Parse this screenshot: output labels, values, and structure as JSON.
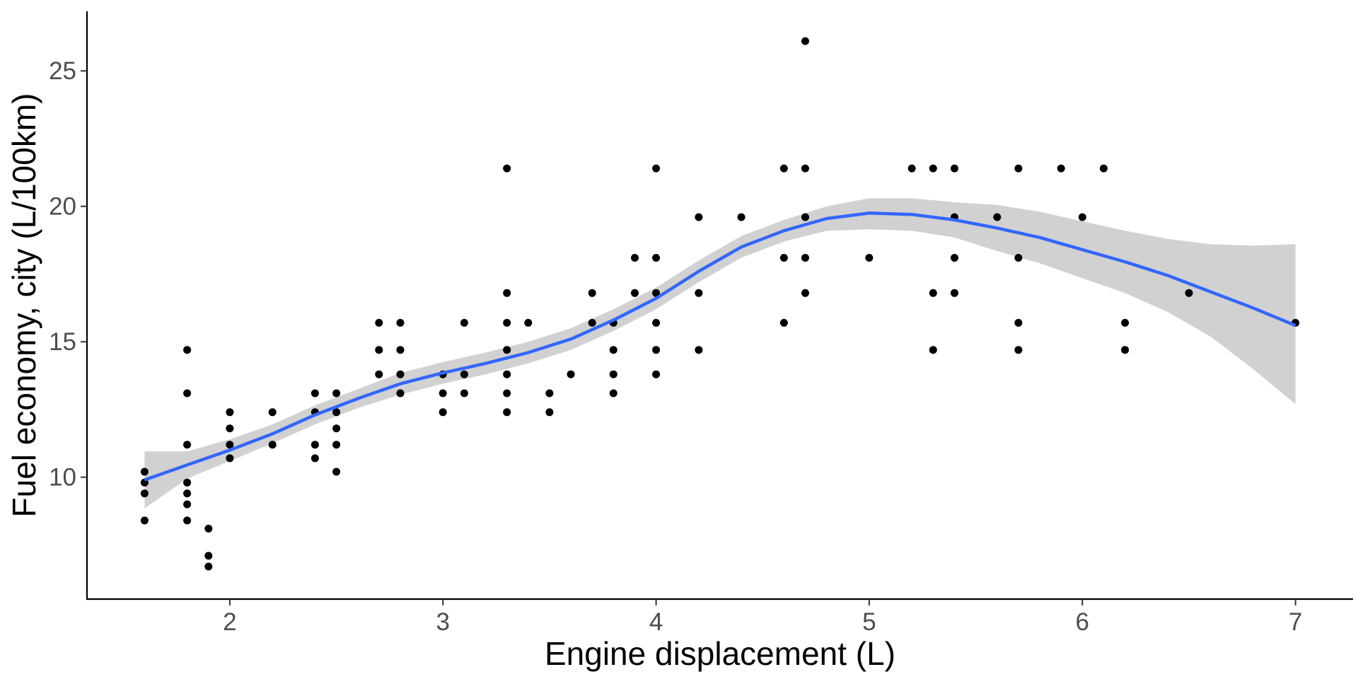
{
  "chart_data": {
    "type": "scatter",
    "title": "",
    "xlabel": "Engine displacement (L)",
    "ylabel": "Fuel economy, city (L/100km)",
    "xlim": [
      1.33,
      7.27
    ],
    "ylim": [
      5.5,
      27.2
    ],
    "x_ticks": [
      2,
      3,
      4,
      5,
      6,
      7
    ],
    "y_ticks": [
      10,
      15,
      20,
      25
    ],
    "grid": false,
    "legend": "none",
    "colors": {
      "points": "#000000",
      "smooth_line": "#3366ff",
      "confidence_band": "#cccccc",
      "axis": "#000000",
      "tick_label": "#4d4d4d"
    },
    "points": [
      {
        "x": 1.6,
        "y": 8.4
      },
      {
        "x": 1.6,
        "y": 9.4
      },
      {
        "x": 1.6,
        "y": 9.8
      },
      {
        "x": 1.6,
        "y": 10.2
      },
      {
        "x": 1.8,
        "y": 8.4
      },
      {
        "x": 1.8,
        "y": 9.0
      },
      {
        "x": 1.8,
        "y": 9.4
      },
      {
        "x": 1.8,
        "y": 9.8
      },
      {
        "x": 1.8,
        "y": 11.2
      },
      {
        "x": 1.8,
        "y": 13.1
      },
      {
        "x": 1.8,
        "y": 14.7
      },
      {
        "x": 1.9,
        "y": 6.7
      },
      {
        "x": 1.9,
        "y": 7.1
      },
      {
        "x": 1.9,
        "y": 8.1
      },
      {
        "x": 2.0,
        "y": 10.7
      },
      {
        "x": 2.0,
        "y": 11.2
      },
      {
        "x": 2.0,
        "y": 11.8
      },
      {
        "x": 2.0,
        "y": 12.4
      },
      {
        "x": 2.2,
        "y": 11.2
      },
      {
        "x": 2.2,
        "y": 12.4
      },
      {
        "x": 2.4,
        "y": 10.7
      },
      {
        "x": 2.4,
        "y": 11.2
      },
      {
        "x": 2.4,
        "y": 12.4
      },
      {
        "x": 2.4,
        "y": 13.1
      },
      {
        "x": 2.5,
        "y": 10.2
      },
      {
        "x": 2.5,
        "y": 11.2
      },
      {
        "x": 2.5,
        "y": 11.8
      },
      {
        "x": 2.5,
        "y": 12.4
      },
      {
        "x": 2.5,
        "y": 13.1
      },
      {
        "x": 2.7,
        "y": 13.8
      },
      {
        "x": 2.7,
        "y": 14.7
      },
      {
        "x": 2.7,
        "y": 15.7
      },
      {
        "x": 2.8,
        "y": 13.1
      },
      {
        "x": 2.8,
        "y": 13.8
      },
      {
        "x": 2.8,
        "y": 14.7
      },
      {
        "x": 2.8,
        "y": 15.7
      },
      {
        "x": 3.0,
        "y": 12.4
      },
      {
        "x": 3.0,
        "y": 13.1
      },
      {
        "x": 3.0,
        "y": 13.8
      },
      {
        "x": 3.1,
        "y": 13.1
      },
      {
        "x": 3.1,
        "y": 13.8
      },
      {
        "x": 3.1,
        "y": 15.7
      },
      {
        "x": 3.3,
        "y": 12.4
      },
      {
        "x": 3.3,
        "y": 13.1
      },
      {
        "x": 3.3,
        "y": 13.8
      },
      {
        "x": 3.3,
        "y": 14.7
      },
      {
        "x": 3.3,
        "y": 15.7
      },
      {
        "x": 3.3,
        "y": 16.8
      },
      {
        "x": 3.3,
        "y": 21.4
      },
      {
        "x": 3.4,
        "y": 15.7
      },
      {
        "x": 3.5,
        "y": 12.4
      },
      {
        "x": 3.5,
        "y": 13.1
      },
      {
        "x": 3.6,
        "y": 13.8
      },
      {
        "x": 3.7,
        "y": 15.7
      },
      {
        "x": 3.7,
        "y": 16.8
      },
      {
        "x": 3.8,
        "y": 13.1
      },
      {
        "x": 3.8,
        "y": 13.8
      },
      {
        "x": 3.8,
        "y": 14.7
      },
      {
        "x": 3.8,
        "y": 15.7
      },
      {
        "x": 3.9,
        "y": 16.8
      },
      {
        "x": 3.9,
        "y": 18.1
      },
      {
        "x": 4.0,
        "y": 13.8
      },
      {
        "x": 4.0,
        "y": 14.7
      },
      {
        "x": 4.0,
        "y": 15.7
      },
      {
        "x": 4.0,
        "y": 16.8
      },
      {
        "x": 4.0,
        "y": 18.1
      },
      {
        "x": 4.0,
        "y": 21.4
      },
      {
        "x": 4.2,
        "y": 14.7
      },
      {
        "x": 4.2,
        "y": 16.8
      },
      {
        "x": 4.2,
        "y": 19.6
      },
      {
        "x": 4.4,
        "y": 19.6
      },
      {
        "x": 4.6,
        "y": 15.7
      },
      {
        "x": 4.6,
        "y": 18.1
      },
      {
        "x": 4.6,
        "y": 21.4
      },
      {
        "x": 4.7,
        "y": 16.8
      },
      {
        "x": 4.7,
        "y": 18.1
      },
      {
        "x": 4.7,
        "y": 19.6
      },
      {
        "x": 4.7,
        "y": 21.4
      },
      {
        "x": 4.7,
        "y": 26.1
      },
      {
        "x": 5.0,
        "y": 18.1
      },
      {
        "x": 5.2,
        "y": 21.4
      },
      {
        "x": 5.3,
        "y": 14.7
      },
      {
        "x": 5.3,
        "y": 16.8
      },
      {
        "x": 5.3,
        "y": 21.4
      },
      {
        "x": 5.4,
        "y": 16.8
      },
      {
        "x": 5.4,
        "y": 18.1
      },
      {
        "x": 5.4,
        "y": 19.6
      },
      {
        "x": 5.4,
        "y": 21.4
      },
      {
        "x": 5.6,
        "y": 19.6
      },
      {
        "x": 5.7,
        "y": 14.7
      },
      {
        "x": 5.7,
        "y": 15.7
      },
      {
        "x": 5.7,
        "y": 18.1
      },
      {
        "x": 5.7,
        "y": 21.4
      },
      {
        "x": 5.9,
        "y": 21.4
      },
      {
        "x": 6.0,
        "y": 19.6
      },
      {
        "x": 6.1,
        "y": 21.4
      },
      {
        "x": 6.2,
        "y": 14.7
      },
      {
        "x": 6.2,
        "y": 15.7
      },
      {
        "x": 6.5,
        "y": 16.8
      },
      {
        "x": 7.0,
        "y": 15.7
      }
    ],
    "smooth": {
      "x": [
        1.6,
        1.8,
        2.0,
        2.2,
        2.4,
        2.6,
        2.8,
        3.0,
        3.2,
        3.4,
        3.6,
        3.8,
        4.0,
        4.2,
        4.4,
        4.6,
        4.8,
        5.0,
        5.2,
        5.4,
        5.6,
        5.8,
        6.0,
        6.2,
        6.4,
        6.6,
        6.8,
        7.0
      ],
      "y": [
        9.9,
        10.45,
        11.0,
        11.6,
        12.3,
        12.9,
        13.45,
        13.85,
        14.2,
        14.6,
        15.1,
        15.8,
        16.6,
        17.6,
        18.5,
        19.1,
        19.55,
        19.75,
        19.7,
        19.5,
        19.2,
        18.85,
        18.4,
        17.95,
        17.45,
        16.85,
        16.25,
        15.6
      ],
      "lower": [
        8.85,
        9.95,
        10.6,
        11.25,
        11.95,
        12.55,
        13.05,
        13.45,
        13.8,
        14.2,
        14.7,
        15.4,
        16.2,
        17.2,
        18.1,
        18.7,
        19.1,
        19.15,
        19.1,
        18.85,
        18.35,
        17.9,
        17.35,
        16.8,
        16.1,
        15.2,
        14.0,
        12.7
      ],
      "upper": [
        10.95,
        10.95,
        11.4,
        11.95,
        12.65,
        13.25,
        13.85,
        14.25,
        14.6,
        15.0,
        15.5,
        16.2,
        17.0,
        18.0,
        18.9,
        19.5,
        20.0,
        20.3,
        20.3,
        20.15,
        20.05,
        19.8,
        19.45,
        19.1,
        18.8,
        18.6,
        18.55,
        18.6
      ]
    }
  }
}
